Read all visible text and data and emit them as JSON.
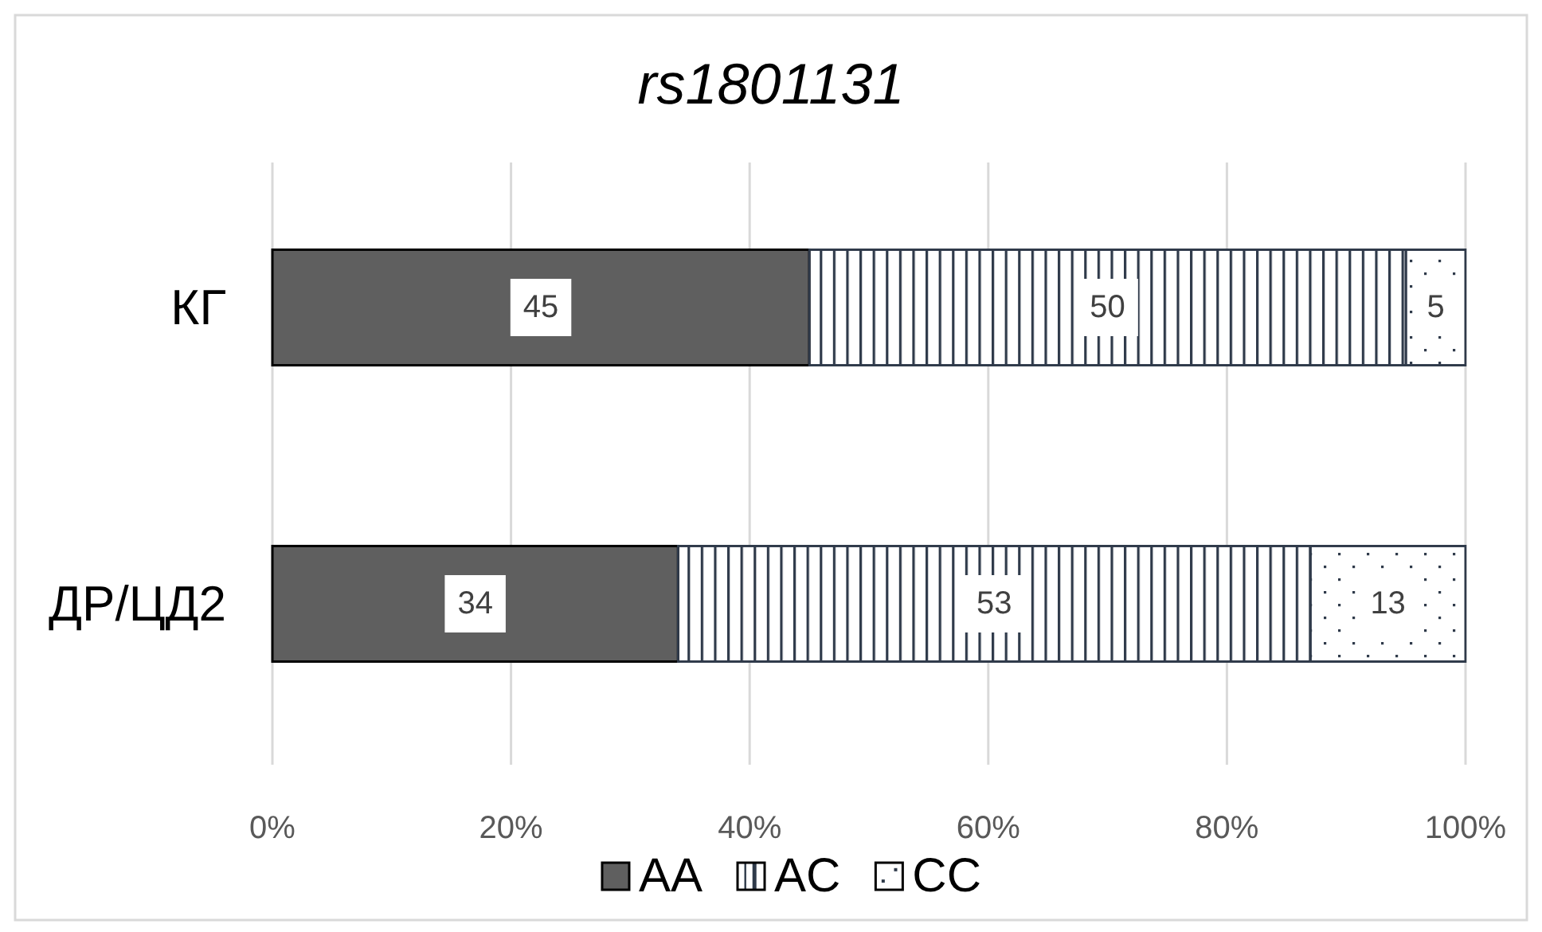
{
  "chart_data": {
    "type": "bar",
    "orientation": "horizontal",
    "stacked": true,
    "title": "rs1801131",
    "categories": [
      "КГ",
      "ДР/ЦД2"
    ],
    "series": [
      {
        "name": "AA",
        "color": "#5f5f5f",
        "values": [
          45,
          34
        ]
      },
      {
        "name": "AC",
        "color": "#2f3a4a",
        "values": [
          50,
          53
        ]
      },
      {
        "name": "CC",
        "color": "#2f3a4a",
        "values": [
          5,
          13
        ]
      }
    ],
    "xlim": [
      0,
      100
    ],
    "xticks": [
      {
        "value": 0,
        "label": "0%"
      },
      {
        "value": 20,
        "label": "20%"
      },
      {
        "value": 40,
        "label": "40%"
      },
      {
        "value": 60,
        "label": "60%"
      },
      {
        "value": 80,
        "label": "80%"
      },
      {
        "value": 100,
        "label": "100%"
      }
    ],
    "grid": "x",
    "legend": "bottom",
    "data_labels": true
  }
}
